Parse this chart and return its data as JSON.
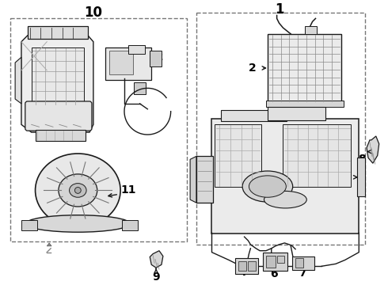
{
  "fig_bg": "#ffffff",
  "panel_bg": "#ffffff",
  "line_color": "#1a1a1a",
  "part_fill": "#f0f0f0",
  "part_edge": "#1a1a1a",
  "label_color": "#000000",
  "border_color": "#555555",
  "grid_color": "#aaaaaa",
  "lw_main": 1.2,
  "lw_thin": 0.6,
  "lw_med": 0.9
}
